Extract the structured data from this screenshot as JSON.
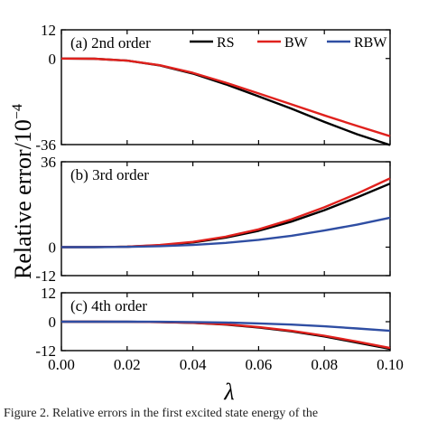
{
  "chart_data": {
    "type": "line",
    "xlabel": "λ",
    "ylabel_main": "Relative error/10",
    "ylabel_exp": "−4",
    "x_ticks": [
      "0.00",
      "0.02",
      "0.04",
      "0.06",
      "0.08",
      "0.10"
    ],
    "x_range": [
      0.0,
      0.1
    ],
    "legend": [
      {
        "name": "RS",
        "color": "#000000"
      },
      {
        "name": "BW",
        "color": "#e0211d"
      },
      {
        "name": "RBW",
        "color": "#2f4ea3"
      }
    ],
    "panels": [
      {
        "label": "(a) 2nd order",
        "ylim": [
          -36,
          12
        ],
        "y_ticks": [
          "12",
          "0",
          "-36"
        ],
        "y_tick_values": [
          12,
          0,
          -36
        ],
        "x": [
          0.0,
          0.01,
          0.02,
          0.03,
          0.04,
          0.05,
          0.06,
          0.07,
          0.08,
          0.09,
          0.1
        ],
        "series": [
          {
            "name": "RS",
            "color": "#000000",
            "values": [
              0,
              -0.1,
              -0.9,
              -2.9,
              -6.3,
              -10.8,
              -15.8,
              -21.0,
              -26.5,
              -31.7,
              -36.2
            ]
          },
          {
            "name": "BW",
            "color": "#e0211d",
            "values": [
              0,
              -0.1,
              -0.9,
              -2.8,
              -6.0,
              -10.1,
              -14.6,
              -19.2,
              -23.8,
              -28.2,
              -32.5
            ]
          }
        ]
      },
      {
        "label": "(b) 3rd order",
        "ylim": [
          -12,
          36
        ],
        "y_ticks": [
          "36",
          "0",
          "-12"
        ],
        "y_tick_values": [
          36,
          0,
          -12
        ],
        "x": [
          0.0,
          0.01,
          0.02,
          0.03,
          0.04,
          0.05,
          0.06,
          0.07,
          0.08,
          0.09,
          0.1
        ],
        "series": [
          {
            "name": "RS",
            "color": "#000000",
            "values": [
              0,
              0.02,
              0.2,
              0.8,
              2.0,
              4.0,
              6.9,
              10.8,
              15.6,
              21.0,
              26.8
            ]
          },
          {
            "name": "BW",
            "color": "#e0211d",
            "values": [
              0,
              0.02,
              0.2,
              0.9,
              2.2,
              4.4,
              7.5,
              11.7,
              16.8,
              22.6,
              29.0
            ]
          },
          {
            "name": "RBW",
            "color": "#2f4ea3",
            "values": [
              0,
              0.01,
              0.1,
              0.4,
              0.9,
              1.8,
              3.1,
              4.8,
              7.0,
              9.5,
              12.4
            ]
          }
        ]
      },
      {
        "label": "(c) 4th order",
        "ylim": [
          -12,
          12
        ],
        "y_ticks": [
          "12",
          "0",
          "-12"
        ],
        "y_tick_values": [
          12,
          0,
          -12
        ],
        "x": [
          0.0,
          0.01,
          0.02,
          0.03,
          0.04,
          0.05,
          0.06,
          0.07,
          0.08,
          0.09,
          0.1
        ],
        "series": [
          {
            "name": "RS",
            "color": "#000000",
            "values": [
              0,
              0,
              -0.02,
              -0.15,
              -0.5,
              -1.2,
              -2.4,
              -4.0,
              -6.1,
              -8.7,
              -11.3
            ]
          },
          {
            "name": "BW",
            "color": "#e0211d",
            "values": [
              0,
              0,
              -0.02,
              -0.14,
              -0.45,
              -1.1,
              -2.2,
              -3.8,
              -5.8,
              -8.3,
              -10.9
            ]
          },
          {
            "name": "RBW",
            "color": "#2f4ea3",
            "values": [
              0,
              0,
              -0.01,
              -0.05,
              -0.15,
              -0.35,
              -0.7,
              -1.2,
              -1.9,
              -2.8,
              -3.8
            ]
          }
        ]
      }
    ]
  },
  "caption": "Figure 2. Relative errors in the first excited state energy of the"
}
